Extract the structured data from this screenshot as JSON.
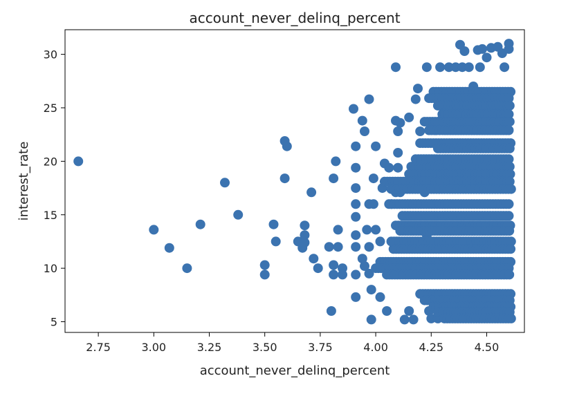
{
  "chart_data": {
    "type": "scatter",
    "title": "account_never_delinq_percent",
    "xlabel": "account_never_delinq_percent",
    "ylabel": "interest_rate",
    "xlim": [
      2.6,
      4.67
    ],
    "ylim": [
      4.0,
      32.3
    ],
    "xticks": [
      2.75,
      3.0,
      3.25,
      3.5,
      3.75,
      4.0,
      4.25,
      4.5
    ],
    "xtick_labels": [
      "2.75",
      "3.00",
      "3.25",
      "3.50",
      "3.75",
      "4.00",
      "4.25",
      "4.50"
    ],
    "yticks": [
      5,
      10,
      15,
      20,
      25,
      30
    ],
    "ytick_labels": [
      "5",
      "10",
      "15",
      "20",
      "25",
      "30"
    ],
    "grid": false,
    "marker_color": "#3b73b0",
    "series": [
      {
        "points": [
          [
            2.66,
            20.0
          ],
          [
            3.0,
            13.6
          ],
          [
            3.07,
            11.9
          ],
          [
            3.15,
            10.0
          ],
          [
            3.21,
            14.1
          ],
          [
            3.32,
            18.0
          ],
          [
            3.38,
            15.0
          ],
          [
            3.5,
            10.3
          ],
          [
            3.5,
            9.4
          ],
          [
            3.54,
            14.1
          ],
          [
            3.55,
            12.5
          ],
          [
            3.59,
            21.9
          ],
          [
            3.59,
            18.4
          ],
          [
            3.6,
            21.4
          ],
          [
            3.65,
            12.5
          ],
          [
            3.67,
            11.9
          ],
          [
            3.68,
            14.0
          ],
          [
            3.68,
            13.1
          ],
          [
            3.68,
            12.4
          ],
          [
            3.71,
            17.1
          ],
          [
            3.72,
            10.9
          ],
          [
            3.74,
            10.0
          ],
          [
            3.79,
            12.0
          ],
          [
            3.8,
            6.0
          ],
          [
            3.81,
            18.4
          ],
          [
            3.81,
            10.3
          ],
          [
            3.81,
            9.4
          ],
          [
            3.82,
            20.0
          ],
          [
            3.83,
            13.6
          ],
          [
            3.83,
            12.0
          ],
          [
            3.85,
            10.0
          ],
          [
            3.85,
            9.4
          ],
          [
            3.9,
            24.9
          ],
          [
            3.91,
            21.4
          ],
          [
            3.91,
            19.4
          ],
          [
            3.91,
            17.5
          ],
          [
            3.91,
            16.0
          ],
          [
            3.91,
            14.8
          ],
          [
            3.91,
            13.1
          ],
          [
            3.91,
            12.0
          ],
          [
            3.91,
            9.4
          ],
          [
            3.91,
            7.3
          ],
          [
            3.94,
            23.8
          ],
          [
            3.94,
            10.9
          ],
          [
            3.95,
            22.8
          ],
          [
            3.95,
            10.2
          ],
          [
            3.96,
            13.6
          ],
          [
            3.97,
            25.8
          ],
          [
            3.97,
            16.0
          ],
          [
            3.97,
            12.0
          ],
          [
            3.97,
            9.5
          ],
          [
            3.98,
            8.0
          ],
          [
            3.98,
            5.2
          ],
          [
            3.99,
            18.4
          ],
          [
            3.99,
            16.0
          ],
          [
            4.0,
            21.4
          ],
          [
            4.0,
            13.6
          ],
          [
            4.02,
            12.5
          ],
          [
            4.02,
            7.3
          ],
          [
            4.03,
            17.5
          ],
          [
            4.04,
            19.8
          ],
          [
            4.05,
            6.0
          ],
          [
            4.06,
            19.4
          ],
          [
            4.07,
            16.0
          ],
          [
            4.09,
            28.8
          ],
          [
            4.09,
            23.8
          ],
          [
            4.09,
            17.1
          ],
          [
            4.1,
            22.8
          ],
          [
            4.1,
            20.8
          ],
          [
            4.1,
            19.4
          ],
          [
            4.11,
            23.6
          ],
          [
            4.11,
            17.1
          ],
          [
            4.13,
            5.2
          ],
          [
            4.15,
            24.1
          ],
          [
            4.15,
            6.0
          ],
          [
            4.17,
            5.2
          ],
          [
            4.18,
            25.8
          ],
          [
            4.19,
            26.8
          ],
          [
            4.2,
            22.8
          ],
          [
            4.21,
            20.1
          ],
          [
            4.22,
            17.1
          ],
          [
            4.23,
            28.8
          ],
          [
            4.23,
            13.1
          ],
          [
            4.24,
            6.0
          ],
          [
            4.25,
            5.3
          ],
          [
            4.27,
            22.9
          ],
          [
            4.28,
            5.3
          ],
          [
            4.29,
            28.8
          ],
          [
            4.3,
            24.0
          ],
          [
            4.33,
            28.8
          ],
          [
            4.36,
            28.8
          ],
          [
            4.38,
            30.9
          ],
          [
            4.39,
            28.8
          ],
          [
            4.4,
            30.3
          ],
          [
            4.42,
            28.8
          ],
          [
            4.44,
            27.0
          ],
          [
            4.46,
            30.4
          ],
          [
            4.47,
            28.8
          ],
          [
            4.48,
            30.5
          ],
          [
            4.5,
            29.7
          ],
          [
            4.52,
            30.6
          ],
          [
            4.55,
            30.7
          ],
          [
            4.57,
            30.1
          ],
          [
            4.58,
            28.8
          ],
          [
            4.6,
            31.0
          ],
          [
            4.6,
            30.5
          ]
        ],
        "bands": [
          {
            "y": 26.5,
            "x_from": 4.26,
            "x_to": 4.61
          },
          {
            "y": 25.9,
            "x_from": 4.24,
            "x_to": 4.61
          },
          {
            "y": 25.2,
            "x_from": 4.28,
            "x_to": 4.61
          },
          {
            "y": 24.4,
            "x_from": 4.3,
            "x_to": 4.61
          },
          {
            "y": 23.7,
            "x_from": 4.22,
            "x_to": 4.61
          },
          {
            "y": 22.9,
            "x_from": 4.24,
            "x_to": 4.61
          },
          {
            "y": 21.7,
            "x_from": 4.2,
            "x_to": 4.61
          },
          {
            "y": 21.2,
            "x_from": 4.28,
            "x_to": 4.61
          },
          {
            "y": 20.2,
            "x_from": 4.18,
            "x_to": 4.61
          },
          {
            "y": 19.5,
            "x_from": 4.16,
            "x_to": 4.61
          },
          {
            "y": 18.8,
            "x_from": 4.15,
            "x_to": 4.61
          },
          {
            "y": 18.1,
            "x_from": 4.04,
            "x_to": 4.61
          },
          {
            "y": 17.4,
            "x_from": 4.07,
            "x_to": 4.61
          },
          {
            "y": 16.0,
            "x_from": 4.06,
            "x_to": 4.61
          },
          {
            "y": 14.9,
            "x_from": 4.12,
            "x_to": 4.61
          },
          {
            "y": 14.0,
            "x_from": 4.09,
            "x_to": 4.61
          },
          {
            "y": 13.5,
            "x_from": 4.11,
            "x_to": 4.61
          },
          {
            "y": 12.5,
            "x_from": 4.07,
            "x_to": 4.61
          },
          {
            "y": 11.8,
            "x_from": 4.08,
            "x_to": 4.61
          },
          {
            "y": 10.6,
            "x_from": 4.02,
            "x_to": 4.61
          },
          {
            "y": 10.0,
            "x_from": 4.0,
            "x_to": 4.61
          },
          {
            "y": 9.4,
            "x_from": 4.05,
            "x_to": 4.61
          },
          {
            "y": 7.6,
            "x_from": 4.2,
            "x_to": 4.61
          },
          {
            "y": 7.0,
            "x_from": 4.22,
            "x_to": 4.61
          },
          {
            "y": 6.4,
            "x_from": 4.26,
            "x_to": 4.61
          },
          {
            "y": 5.9,
            "x_from": 4.28,
            "x_to": 4.61
          },
          {
            "y": 5.3,
            "x_from": 4.31,
            "x_to": 4.61
          }
        ]
      }
    ]
  }
}
